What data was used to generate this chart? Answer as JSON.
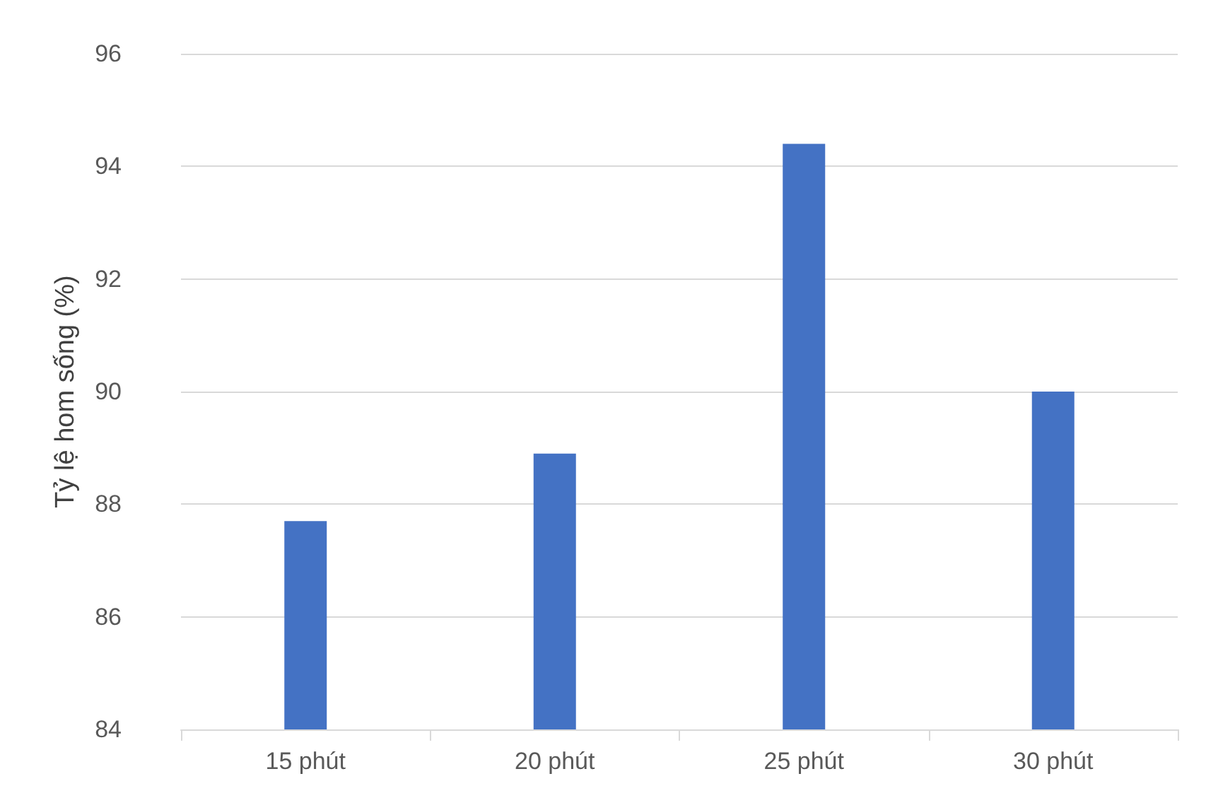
{
  "chart_data": {
    "type": "bar",
    "ylabel": "Tỷ lệ hom sống (%)",
    "categories": [
      "15 phút",
      "20 phút",
      "25 phút",
      "30 phút"
    ],
    "values": [
      87.7,
      88.9,
      94.4,
      90.0
    ],
    "color": "#4472c4",
    "ylim": [
      84,
      96
    ],
    "yticks": [
      84,
      86,
      88,
      90,
      92,
      94,
      96
    ],
    "grid": "y"
  }
}
